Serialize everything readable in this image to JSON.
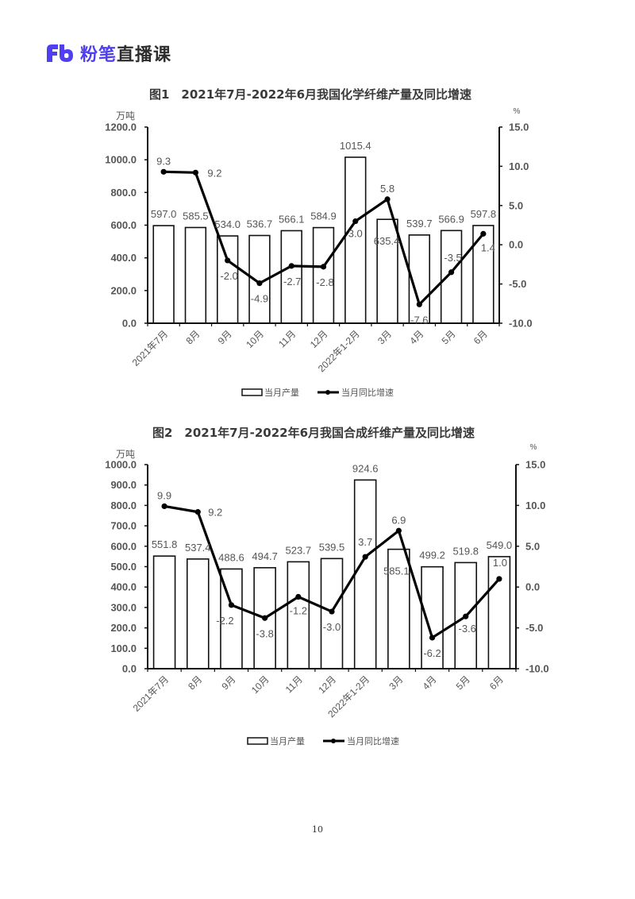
{
  "header": {
    "logo_icon": "fb-logo-icon",
    "brand": "粉笔",
    "suffix": "直播课",
    "brand_color": "#4f3ff0"
  },
  "page_number": "10",
  "chart_data": [
    {
      "type": "bar",
      "title": "图1　2021年7月-2022年6月我国化学纤维产量及同比增速",
      "xlabel": "",
      "ylabel": "万吨",
      "y2label": "%",
      "ylim": [
        0,
        1200
      ],
      "y2lim": [
        -10,
        15
      ],
      "yticks": [
        "1200.0",
        "1000.0",
        "800.0",
        "600.0",
        "400.0",
        "200.0",
        "0.0"
      ],
      "y2ticks": [
        "15.0",
        "10.0",
        "5.0",
        "0.0",
        "-5.0",
        "-10.0"
      ],
      "categories": [
        "2021年7月",
        "8月",
        "9月",
        "10月",
        "11月",
        "12月",
        "2022年1-2月",
        "3月",
        "4月",
        "5月",
        "6月"
      ],
      "series": [
        {
          "name": "当月产量",
          "type": "bar",
          "axis": "left",
          "values": [
            597.0,
            585.5,
            534.0,
            536.7,
            566.1,
            584.9,
            1015.4,
            635.4,
            539.7,
            566.9,
            597.8
          ],
          "labels": [
            "597.0",
            "585.5",
            "534.0",
            "536.7",
            "566.1",
            "584.9",
            "1015.4",
            "635.4",
            "539.7",
            "566.9",
            "597.8"
          ]
        },
        {
          "name": "当月同比增速",
          "type": "line",
          "axis": "right",
          "values": [
            9.3,
            9.2,
            -2.0,
            -4.9,
            -2.7,
            -2.8,
            3.0,
            5.8,
            -7.6,
            -3.5,
            1.4
          ],
          "labels": [
            "9.3",
            "9.2",
            "-2.0",
            "-4.9",
            "-2.7",
            "-2.8",
            "3.0",
            "5.8",
            "-7.6",
            "-3.5",
            "1.4"
          ]
        }
      ],
      "legend": [
        "当月产量",
        "当月同比增速"
      ],
      "legend_position": "bottom",
      "grid": false
    },
    {
      "type": "bar",
      "title": "图2　2021年7月-2022年6月我国合成纤维产量及同比增速",
      "xlabel": "",
      "ylabel": "万吨",
      "y2label": "%",
      "ylim": [
        0,
        1000
      ],
      "y2lim": [
        -10,
        15
      ],
      "yticks": [
        "1000.0",
        "900.0",
        "800.0",
        "700.0",
        "600.0",
        "500.0",
        "400.0",
        "300.0",
        "200.0",
        "100.0",
        "0.0"
      ],
      "y2ticks": [
        "15.0",
        "10.0",
        "5.0",
        "0.0",
        "-5.0",
        "-10.0"
      ],
      "categories": [
        "2021年7月",
        "8月",
        "9月",
        "10月",
        "11月",
        "12月",
        "2022年1-2月",
        "3月",
        "4月",
        "5月",
        "6月"
      ],
      "series": [
        {
          "name": "当月产量",
          "type": "bar",
          "axis": "left",
          "values": [
            551.8,
            537.4,
            488.6,
            494.7,
            523.7,
            539.5,
            924.6,
            585.1,
            499.2,
            519.8,
            549.0
          ],
          "labels": [
            "551.8",
            "537.4",
            "488.6",
            "494.7",
            "523.7",
            "539.5",
            "924.6",
            "585.1",
            "499.2",
            "519.8",
            "549.0"
          ]
        },
        {
          "name": "当月同比增速",
          "type": "line",
          "axis": "right",
          "values": [
            9.9,
            9.2,
            -2.2,
            -3.8,
            -1.2,
            -3.0,
            3.7,
            6.9,
            -6.2,
            -3.6,
            1.0
          ],
          "labels": [
            "9.9",
            "9.2",
            "-2.2",
            "-3.8",
            "-1.2",
            "-3.0",
            "3.7",
            "6.9",
            "-6.2",
            "-3.6",
            "1.0"
          ]
        }
      ],
      "legend": [
        "当月产量",
        "当月同比增速"
      ],
      "legend_position": "bottom",
      "grid": false
    }
  ]
}
